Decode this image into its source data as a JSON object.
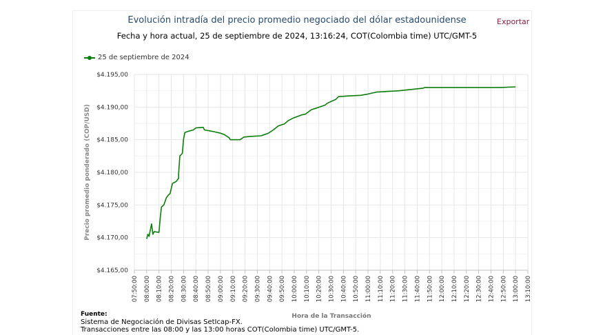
{
  "header": {
    "title": "Evolución intradía del precio promedio negociado del dólar estadounidense",
    "subtitle": "Fecha y hora actual, 25 de septiembre de 2024, 13:16:24, COT(Colombia time) UTC/GMT-5",
    "export_label": "Exportar"
  },
  "footer": {
    "source_label": "Fuente:",
    "line1": "Sistema de Negociación de Divisas SetIcap-FX.",
    "line2": "Transacciones entre las 08:00 y las 13:00 horas COT(Colombia time) UTC/GMT-5."
  },
  "colors": {
    "series": "#0a7d0a",
    "title": "#274b6d",
    "export": "#8b1c3b",
    "grid": "#e6e6e6"
  },
  "chart_data": {
    "type": "line",
    "title": "Evolución intradía del precio promedio negociado del dólar estadounidense",
    "xlabel": "Hora de la Transacción",
    "ylabel": "Precio promedio ponderado (COP/USD)",
    "ylim": [
      4165,
      4195
    ],
    "yticks": [
      4165,
      4170,
      4175,
      4180,
      4185,
      4190,
      4195
    ],
    "ytick_labels": [
      "$4.165,00",
      "$4.170,00",
      "$4.175,00",
      "$4.180,00",
      "$4.185,00",
      "$4.190,00",
      "$4.195,00"
    ],
    "xlim": [
      "07:50:00",
      "13:10:00"
    ],
    "xtick_labels": [
      "07:50:00",
      "08:00:00",
      "08:10:00",
      "08:20:00",
      "08:30:00",
      "08:40:00",
      "08:50:00",
      "09:00:00",
      "09:10:00",
      "09:20:00",
      "09:30:00",
      "09:40:00",
      "09:50:00",
      "10:00:00",
      "10:10:00",
      "10:20:00",
      "10:30:00",
      "10:40:00",
      "10:50:00",
      "11:00:00",
      "11:10:00",
      "11:20:00",
      "11:30:00",
      "11:40:00",
      "11:50:00",
      "12:00:00",
      "12:10:00",
      "12:20:00",
      "12:30:00",
      "12:40:00",
      "12:50:00",
      "13:00:00",
      "13:10:00"
    ],
    "grid": true,
    "legend_position": "top-left",
    "series": [
      {
        "name": "25 de septiembre de 2024",
        "x": [
          "08:00",
          "08:01",
          "08:02",
          "08:03",
          "08:04",
          "08:05",
          "08:06",
          "08:10",
          "08:11",
          "08:12",
          "08:14",
          "08:16",
          "08:18",
          "08:19",
          "08:21",
          "08:24",
          "08:26",
          "08:26",
          "08:27",
          "08:29",
          "08:30",
          "08:31",
          "08:34",
          "08:38",
          "08:40",
          "08:46",
          "08:47",
          "08:53",
          "09:00",
          "09:03",
          "09:07",
          "09:08",
          "09:16",
          "09:19",
          "09:24",
          "09:33",
          "09:39",
          "09:43",
          "09:47",
          "09:50",
          "09:52",
          "09:55",
          "09:59",
          "10:06",
          "10:09",
          "10:14",
          "10:19",
          "10:25",
          "10:27",
          "10:34",
          "10:36",
          "10:44",
          "10:54",
          "11:00",
          "11:07",
          "11:25",
          "11:45",
          "11:46",
          "12:48",
          "13:00"
        ],
        "values": [
          4169.8,
          4170.5,
          4170.2,
          4171.2,
          4172.1,
          4170.5,
          4170.9,
          4170.8,
          4173.0,
          4174.7,
          4175.0,
          4176.1,
          4176.6,
          4176.7,
          4178.3,
          4178.6,
          4179.1,
          4179.8,
          4182.5,
          4182.9,
          4185.1,
          4186.1,
          4186.3,
          4186.5,
          4186.8,
          4186.9,
          4186.5,
          4186.3,
          4186.0,
          4185.8,
          4185.3,
          4185.0,
          4185.0,
          4185.4,
          4185.5,
          4185.6,
          4186.0,
          4186.5,
          4187.1,
          4187.3,
          4187.4,
          4187.9,
          4188.3,
          4188.8,
          4188.9,
          4189.6,
          4189.9,
          4190.3,
          4190.6,
          4191.2,
          4191.6,
          4191.7,
          4191.8,
          4192.0,
          4192.3,
          4192.5,
          4192.9,
          4193.0,
          4193.0,
          4193.1
        ]
      }
    ]
  }
}
